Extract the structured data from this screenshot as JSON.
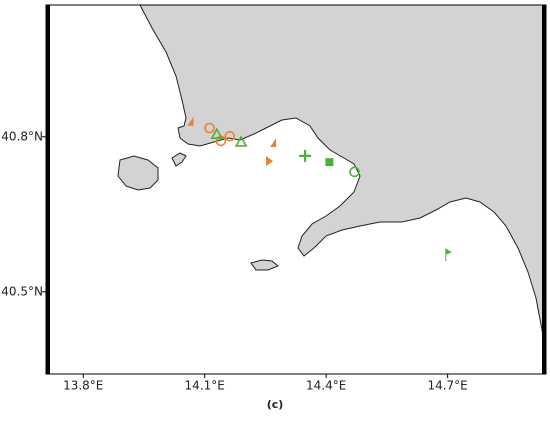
{
  "chart_data": {
    "type": "map",
    "caption": "(c)",
    "xlim": [
      13.708,
      14.943
    ],
    "ylim": [
      40.341,
      41.055
    ],
    "xticks": [
      {
        "value": 13.8,
        "label": "13.8°E"
      },
      {
        "value": 14.1,
        "label": "14.1°E"
      },
      {
        "value": 14.4,
        "label": "14.4°E"
      },
      {
        "value": 14.7,
        "label": "14.7°E"
      }
    ],
    "yticks": [
      {
        "value": 40.5,
        "label": "40.5°N"
      },
      {
        "value": 40.8,
        "label": "40.8°N"
      }
    ],
    "points": [
      {
        "x": 14.065,
        "y": 40.829,
        "shape": "flag",
        "color": "#f07f2e"
      },
      {
        "x": 14.112,
        "y": 40.817,
        "shape": "circle",
        "color": "#f07f2e"
      },
      {
        "x": 14.14,
        "y": 40.792,
        "shape": "circle",
        "color": "#f07f2e"
      },
      {
        "x": 14.162,
        "y": 40.801,
        "shape": "circle",
        "color": "#f07f2e"
      },
      {
        "x": 14.13,
        "y": 40.805,
        "shape": "triangle",
        "color": "#4daf3a"
      },
      {
        "x": 14.19,
        "y": 40.79,
        "shape": "triangle",
        "color": "#4daf3a"
      },
      {
        "x": 14.269,
        "y": 40.788,
        "shape": "flag",
        "color": "#f07f2e"
      },
      {
        "x": 14.259,
        "y": 40.753,
        "shape": "right-triangle",
        "color": "#f07f2e"
      },
      {
        "x": 14.348,
        "y": 40.763,
        "shape": "plus",
        "color": "#4daf3a"
      },
      {
        "x": 14.408,
        "y": 40.751,
        "shape": "square",
        "color": "#4daf3a"
      },
      {
        "x": 14.47,
        "y": 40.732,
        "shape": "circle",
        "color": "#4daf3a"
      },
      {
        "x": 14.698,
        "y": 40.571,
        "shape": "pennant",
        "color": "#4daf3a"
      }
    ]
  }
}
